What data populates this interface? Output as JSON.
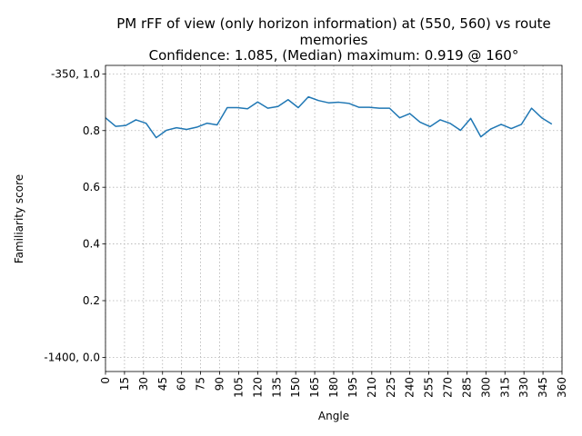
{
  "chart_data": {
    "type": "line",
    "title": [
      "PM rFF of view (only horizon information) at (550, 560) vs route",
      "memories",
      "Confidence: 1.085, (Median) maximum: 0.919 @ 160°"
    ],
    "xlabel": "Angle",
    "ylabel": "Familiarity score",
    "xlim": [
      0,
      360
    ],
    "ylim": [
      -0.05,
      1.03
    ],
    "x_ticks": [
      0,
      15,
      30,
      45,
      60,
      75,
      90,
      105,
      120,
      135,
      150,
      165,
      180,
      195,
      210,
      225,
      240,
      255,
      270,
      285,
      300,
      315,
      330,
      345,
      360
    ],
    "y_ticks": [
      {
        "value": 0.0,
        "label": "-1400, 0.0"
      },
      {
        "value": 0.2,
        "label": "0.2"
      },
      {
        "value": 0.4,
        "label": "0.4"
      },
      {
        "value": 0.6,
        "label": "0.6"
      },
      {
        "value": 0.8,
        "label": "0.8"
      },
      {
        "value": 1.0,
        "label": "-350, 1.0"
      }
    ],
    "grid": true,
    "series": [
      {
        "color": "#1f77b4",
        "x": [
          0,
          8,
          16,
          24,
          32,
          40,
          48,
          56,
          64,
          72,
          80,
          88,
          96,
          104,
          112,
          120,
          128,
          136,
          144,
          152,
          160,
          168,
          176,
          184,
          192,
          200,
          208,
          216,
          224,
          232,
          240,
          248,
          256,
          264,
          272,
          280,
          288,
          296,
          304,
          312,
          320,
          328,
          336,
          344,
          352
        ],
        "values": [
          0.845,
          0.815,
          0.818,
          0.838,
          0.826,
          0.775,
          0.801,
          0.81,
          0.804,
          0.812,
          0.826,
          0.82,
          0.881,
          0.881,
          0.877,
          0.901,
          0.879,
          0.885,
          0.909,
          0.881,
          0.919,
          0.906,
          0.898,
          0.9,
          0.896,
          0.882,
          0.882,
          0.879,
          0.879,
          0.845,
          0.86,
          0.83,
          0.814,
          0.838,
          0.825,
          0.801,
          0.843,
          0.778,
          0.806,
          0.822,
          0.807,
          0.822,
          0.879,
          0.845,
          0.823
        ]
      }
    ]
  }
}
